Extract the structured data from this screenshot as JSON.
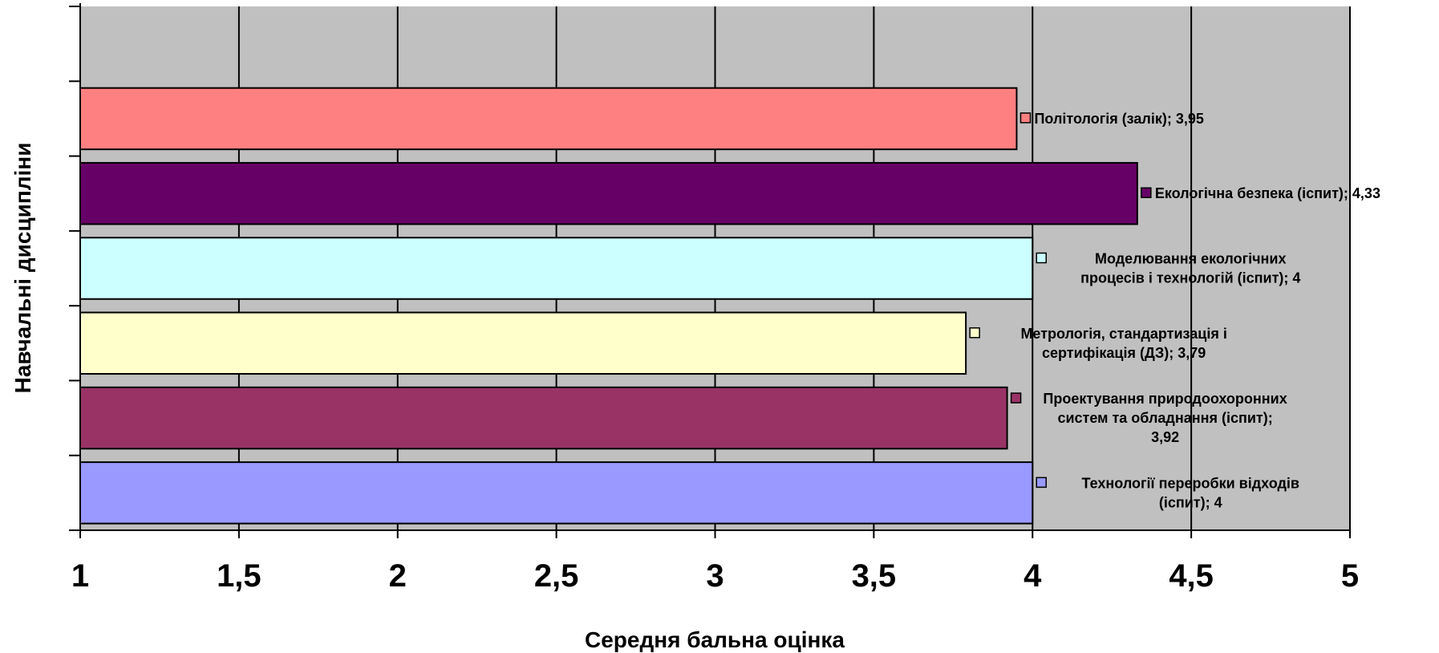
{
  "chart_data": {
    "type": "bar",
    "orientation": "horizontal",
    "xlabel": "Середня бальна оцінка",
    "ylabel": "Навчальні дисципліни",
    "xlim": [
      1,
      5
    ],
    "x_ticks": [
      "1",
      "1,5",
      "2",
      "2,5",
      "3",
      "3,5",
      "4",
      "4,5",
      "5"
    ],
    "grid": true,
    "background_color": "#c0c0c0",
    "series": [
      {
        "name": "Технології переробки відходів (іспит)",
        "value": 4,
        "color": "#9999ff",
        "label_lines": [
          "Технології переробки відходів",
          "(іспит); 4"
        ]
      },
      {
        "name": "Проектування природоохоронних систем та обладнання (іспит)",
        "value": 3.92,
        "color": "#993366",
        "label_lines": [
          "Проектування природоохоронних",
          "систем та обладнання (іспит);",
          "3,92"
        ]
      },
      {
        "name": "Метрологія, стандартизація і сертифікація (ДЗ)",
        "value": 3.79,
        "color": "#ffffcc",
        "label_lines": [
          "Метрологія, стандартизація і",
          "сертифікація (ДЗ); 3,79"
        ]
      },
      {
        "name": "Моделювання екологічних процесів і технологій (іспит)",
        "value": 4,
        "color": "#ccffff",
        "label_lines": [
          "Моделювання екологічних",
          "процесів і технологій (іспит); 4"
        ]
      },
      {
        "name": "Екологічна безпека (іспит)",
        "value": 4.33,
        "color": "#660066",
        "label_lines": [
          "Екологічна безпека (іспит); 4,33"
        ]
      },
      {
        "name": "Політологія (залік)",
        "value": 3.95,
        "color": "#ff8080",
        "label_lines": [
          "Політологія (залік); 3,95"
        ]
      }
    ]
  }
}
